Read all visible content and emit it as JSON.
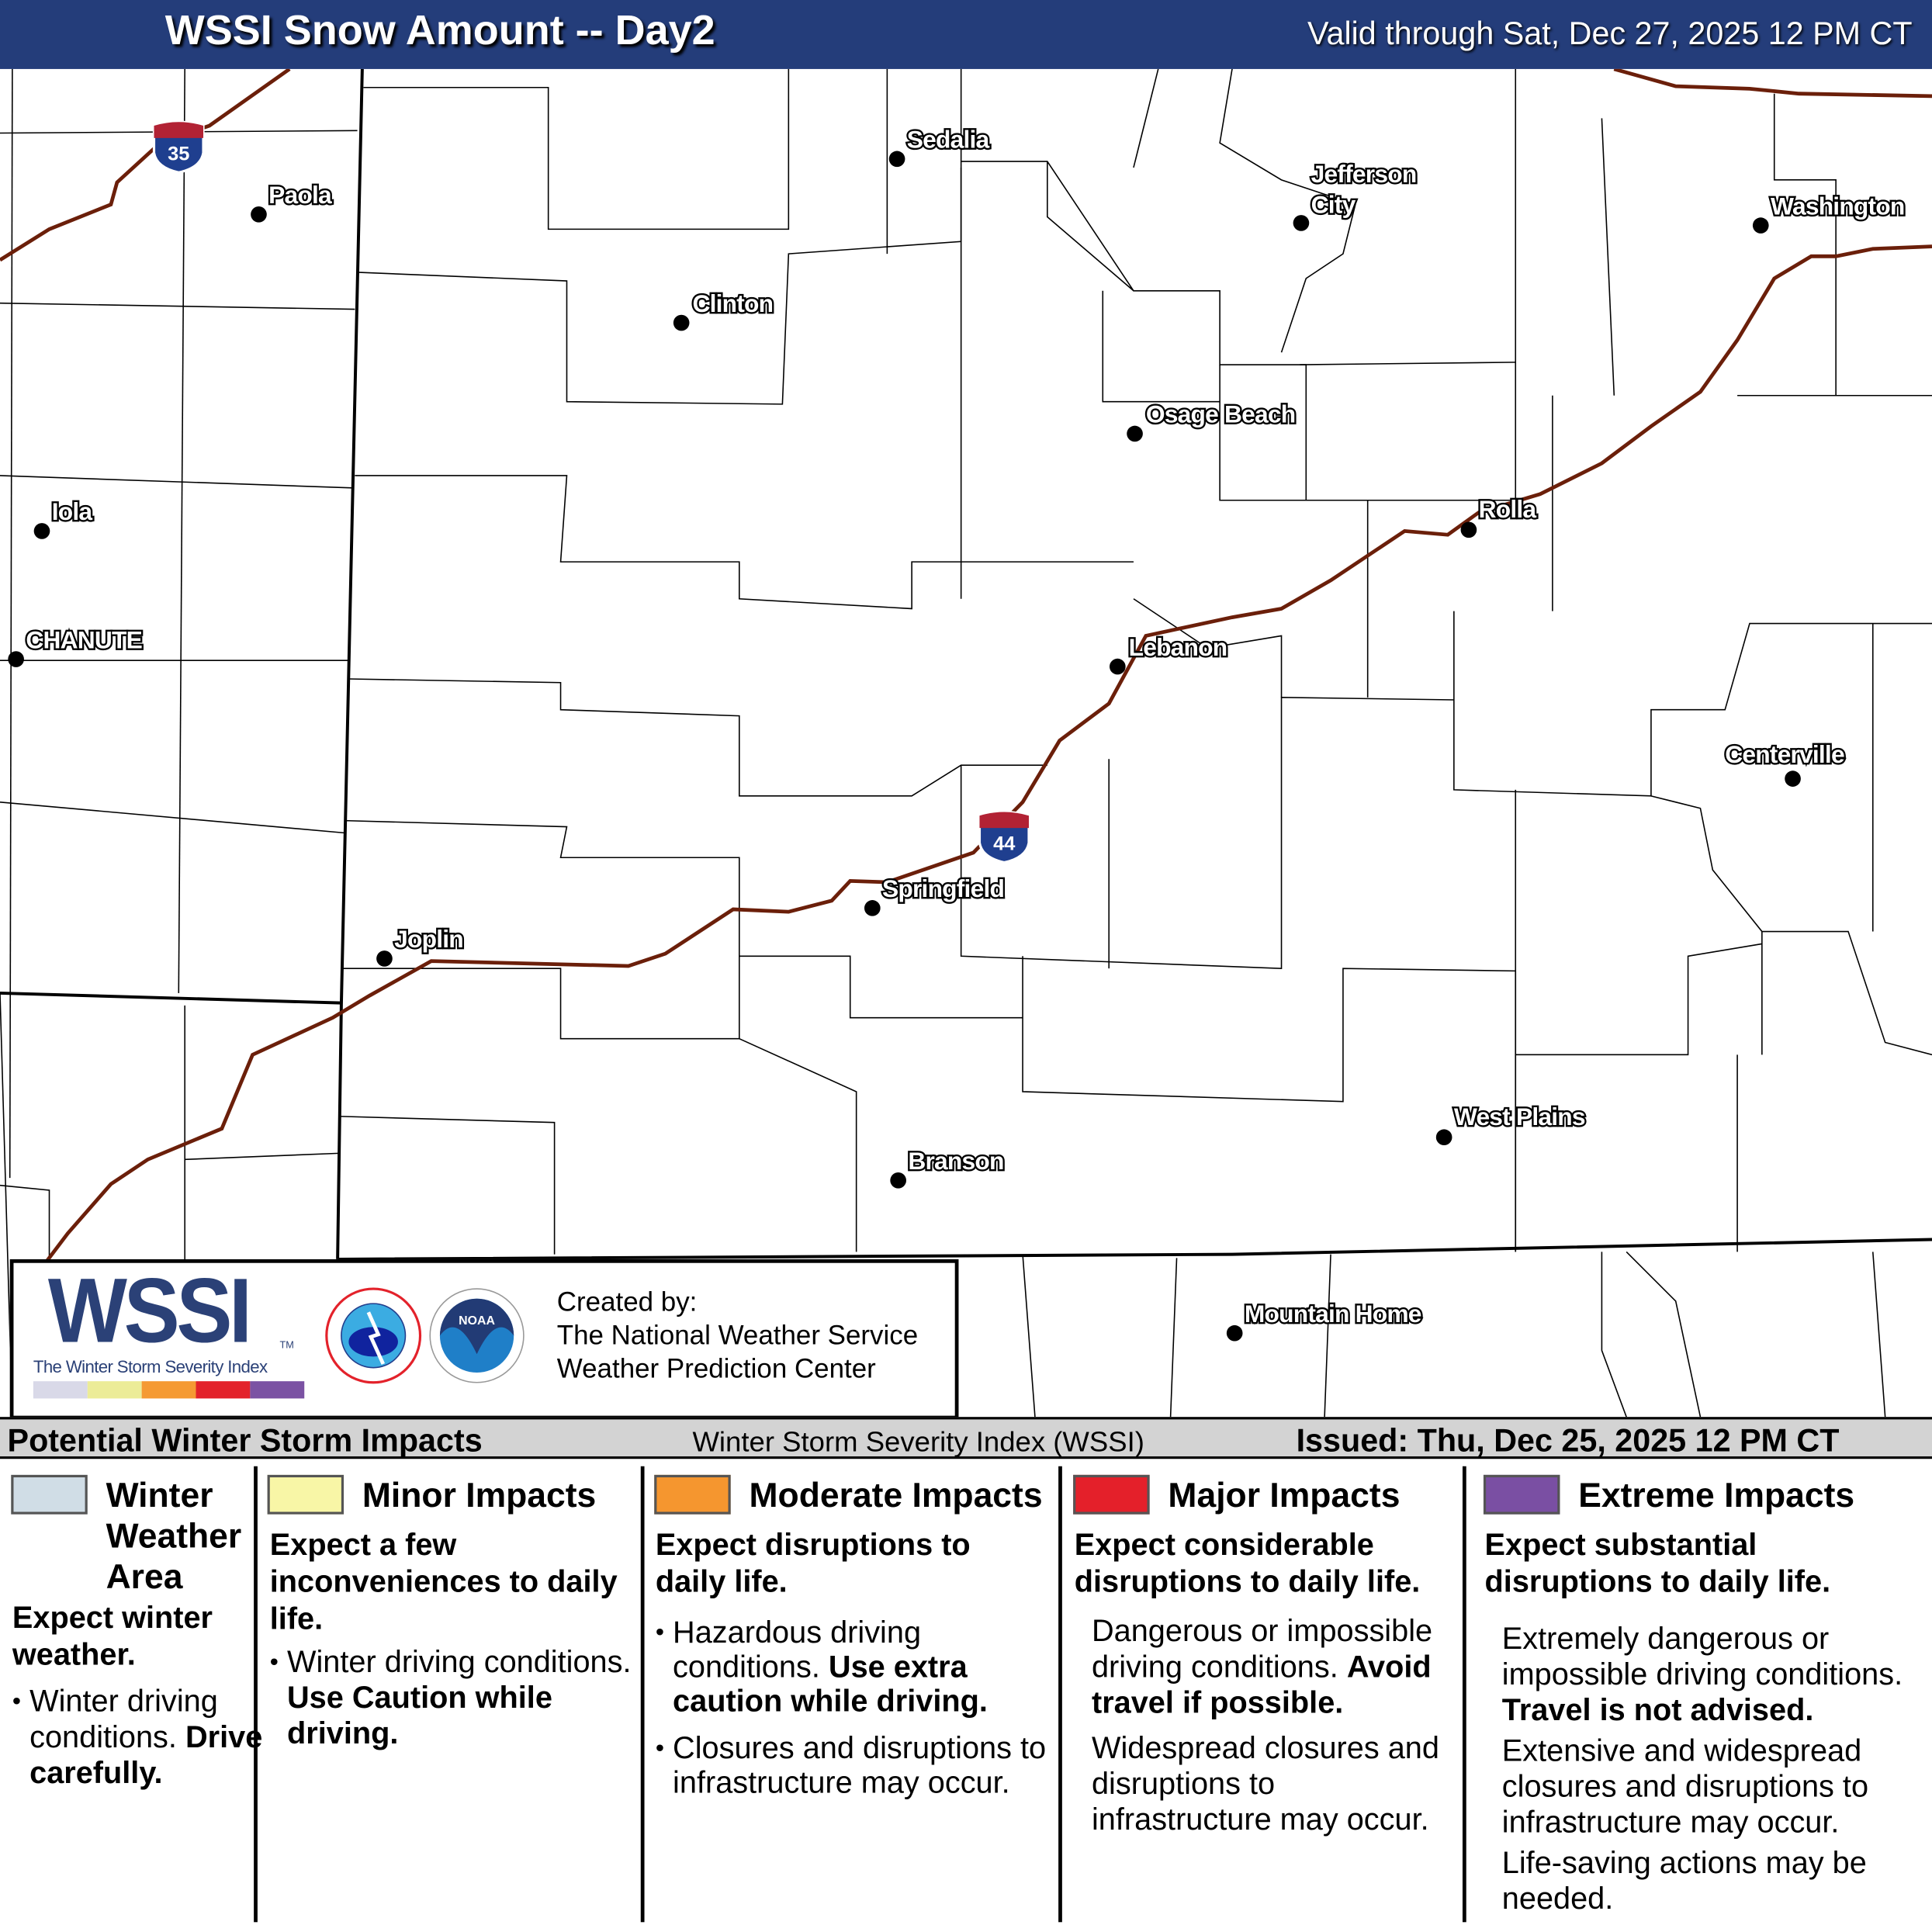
{
  "header": {
    "title": "WSSI Snow Amount -- Day2",
    "valid": "Valid through Sat, Dec 27, 2025 12 PM CT",
    "bg_color": "#243d7a"
  },
  "map": {
    "interstates": [
      {
        "number": "35",
        "icon": "interstate-shield-icon"
      },
      {
        "number": "44",
        "icon": "interstate-shield-icon"
      }
    ],
    "highway_color": "#6b1f0a",
    "cities": [
      "Sedalia",
      "Paola",
      "Jefferson City",
      "Washington",
      "Clinton",
      "Osage Beach",
      "Iola",
      "Rolla",
      "CHANUTE",
      "Lebanon",
      "Centerville",
      "Springfield",
      "Joplin",
      "West Plains",
      "Branson",
      "Mountain Home"
    ]
  },
  "logo": {
    "wssi": "WSSI",
    "tm": "TM",
    "subtitle": "The Winter Storm Severity Index",
    "scale_colors": [
      "#d9d9e8",
      "#ecec98",
      "#f59a33",
      "#e3222b",
      "#7b52a3"
    ],
    "nws_icon": "nws-logo-icon",
    "noaa_icon": "noaa-logo-icon",
    "credit": [
      "Created by:",
      "The National Weather Service",
      "Weather Prediction Center"
    ]
  },
  "legend": {
    "band_title": "Potential Winter Storm Impacts",
    "band_center": "Winter Storm Severity Index (WSSI)",
    "issued": "Issued: Thu, Dec 25, 2025 12 PM CT",
    "categories": [
      {
        "name_lines": [
          "Winter",
          "Weather",
          "Area"
        ],
        "color": "#d0dde6",
        "headline": "Expect winter weather.",
        "bullets": [
          {
            "text": "Winter driving conditions.",
            "bold": "Drive carefully."
          }
        ]
      },
      {
        "name": "Minor Impacts",
        "color": "#f8f6a6",
        "headline": "Expect a few inconveniences to daily life.",
        "bullets": [
          {
            "text": "Winter driving conditions.",
            "bold": "Use Caution while driving."
          }
        ]
      },
      {
        "name": "Moderate Impacts",
        "color": "#f5962f",
        "headline": "Expect disruptions to daily life.",
        "bullets": [
          {
            "text": "Hazardous driving conditions.",
            "bold": "Use extra caution while driving."
          },
          {
            "text": "Closures and disruptions to infrastructure may occur."
          }
        ]
      },
      {
        "name": "Major Impacts",
        "color": "#e4202a",
        "headline": "Expect considerable disruptions to daily life.",
        "paras": [
          {
            "text": "Dangerous or impossible driving conditions.",
            "bold": "Avoid travel if possible."
          },
          {
            "text": "Widespread closures and disruptions to infrastructure may occur."
          }
        ]
      },
      {
        "name": "Extreme Impacts",
        "color": "#7a4fa3",
        "headline": "Expect substantial disruptions to daily life.",
        "paras": [
          {
            "text": "Extremely dangerous or impossible driving conditions.",
            "bold": "Travel is not advised."
          },
          {
            "text": "Extensive and widespread closures and disruptions to infrastructure may occur."
          },
          {
            "text": "Life-saving actions may be needed."
          }
        ]
      }
    ]
  }
}
